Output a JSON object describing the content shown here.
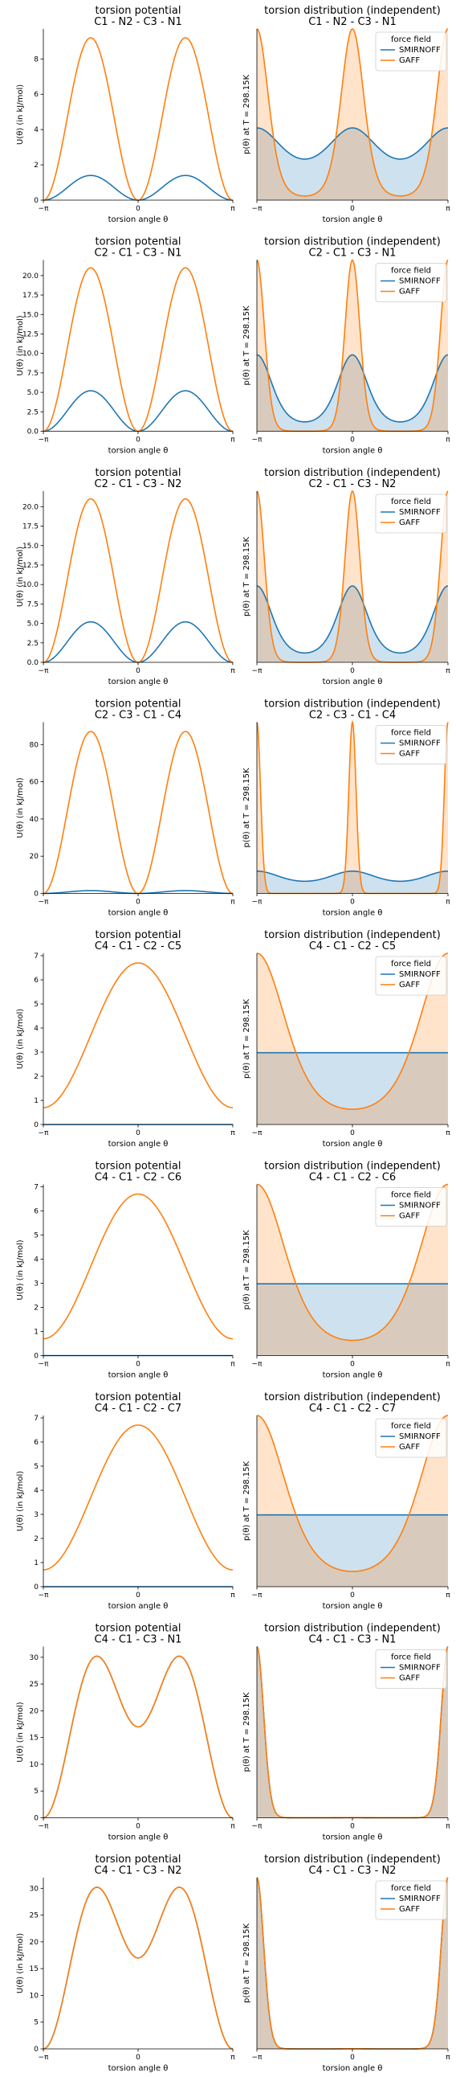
{
  "figure": {
    "series_colors": {
      "SMIRNOFF": "#1f77b4",
      "GAFF": "#ff7f0e"
    },
    "legend_title": "force field",
    "legend_entries": [
      "SMIRNOFF",
      "GAFF"
    ],
    "x_tick_labels": [
      "−π",
      "0",
      "π"
    ],
    "potential_xlabel": "torsion angle θ",
    "potential_ylabel": "U(θ) (in kJ/mol)",
    "distribution_xlabel": "torsion angle θ",
    "distribution_ylabel": "p(θ) at T = 298.15K",
    "potential_title": "torsion potential",
    "distribution_title": "torsion distribution (independent)"
  },
  "chart_data": [
    {
      "type": "line",
      "panel": "potential",
      "title": "torsion potential",
      "subtitle": "C1 - N2 - C3 - N1",
      "xlabel": "torsion angle θ",
      "ylabel": "U(θ) (in kJ/mol)",
      "xlim": [
        -3.1416,
        3.1416
      ],
      "ylim": [
        0,
        9.7
      ],
      "yticks": [
        0,
        2,
        4,
        6,
        8
      ],
      "series": [
        {
          "name": "SMIRNOFF",
          "model": "cos2",
          "amplitude": 1.4
        },
        {
          "name": "GAFF",
          "model": "cos2",
          "amplitude": 9.2
        }
      ]
    },
    {
      "type": "area",
      "panel": "distribution",
      "title": "torsion distribution (independent)",
      "subtitle": "C1 - N2 - C3 - N1",
      "xlabel": "torsion angle θ",
      "ylabel": "p(θ) at T = 298.15K",
      "legend": "top-right",
      "series": [
        {
          "name": "SMIRNOFF",
          "model": "cos2",
          "amplitude": 1.4
        },
        {
          "name": "GAFF",
          "model": "cos2",
          "amplitude": 9.2
        }
      ]
    },
    {
      "type": "line",
      "panel": "potential",
      "title": "torsion potential",
      "subtitle": "C2 - C1 - C3 - N1",
      "xlabel": "torsion angle θ",
      "ylabel": "U(θ) (in kJ/mol)",
      "xlim": [
        -3.1416,
        3.1416
      ],
      "ylim": [
        0,
        22
      ],
      "yticks": [
        0.0,
        2.5,
        5.0,
        7.5,
        10.0,
        12.5,
        15.0,
        17.5,
        20.0
      ],
      "series": [
        {
          "name": "SMIRNOFF",
          "model": "cos2",
          "amplitude": 5.2
        },
        {
          "name": "GAFF",
          "model": "cos2",
          "amplitude": 21.0
        }
      ]
    },
    {
      "type": "area",
      "panel": "distribution",
      "title": "torsion distribution (independent)",
      "subtitle": "C2 - C1 - C3 - N1",
      "xlabel": "torsion angle θ",
      "ylabel": "p(θ) at T = 298.15K",
      "legend": "top-right",
      "series": [
        {
          "name": "SMIRNOFF",
          "model": "cos2",
          "amplitude": 5.2
        },
        {
          "name": "GAFF",
          "model": "cos2",
          "amplitude": 21.0
        }
      ]
    },
    {
      "type": "line",
      "panel": "potential",
      "title": "torsion potential",
      "subtitle": "C2 - C1 - C3 - N2",
      "xlabel": "torsion angle θ",
      "ylabel": "U(θ) (in kJ/mol)",
      "xlim": [
        -3.1416,
        3.1416
      ],
      "ylim": [
        0,
        22
      ],
      "yticks": [
        0.0,
        2.5,
        5.0,
        7.5,
        10.0,
        12.5,
        15.0,
        17.5,
        20.0
      ],
      "series": [
        {
          "name": "SMIRNOFF",
          "model": "cos2",
          "amplitude": 5.2
        },
        {
          "name": "GAFF",
          "model": "cos2",
          "amplitude": 21.0
        }
      ]
    },
    {
      "type": "area",
      "panel": "distribution",
      "title": "torsion distribution (independent)",
      "subtitle": "C2 - C1 - C3 - N2",
      "xlabel": "torsion angle θ",
      "ylabel": "p(θ) at T = 298.15K",
      "legend": "top-right",
      "series": [
        {
          "name": "SMIRNOFF",
          "model": "cos2",
          "amplitude": 5.2
        },
        {
          "name": "GAFF",
          "model": "cos2",
          "amplitude": 21.0
        }
      ]
    },
    {
      "type": "line",
      "panel": "potential",
      "title": "torsion potential",
      "subtitle": "C2 - C3 - C1 - C4",
      "xlabel": "torsion angle θ",
      "ylabel": "U(θ) (in kJ/mol)",
      "xlim": [
        -3.1416,
        3.1416
      ],
      "ylim": [
        0,
        92
      ],
      "yticks": [
        0,
        20,
        40,
        60,
        80
      ],
      "series": [
        {
          "name": "SMIRNOFF",
          "model": "cos2",
          "amplitude": 1.5
        },
        {
          "name": "GAFF",
          "model": "cos2",
          "amplitude": 87.0
        }
      ]
    },
    {
      "type": "area",
      "panel": "distribution",
      "title": "torsion distribution (independent)",
      "subtitle": "C2 - C3 - C1 - C4",
      "xlabel": "torsion angle θ",
      "ylabel": "p(θ) at T = 298.15K",
      "legend": "top-right",
      "series": [
        {
          "name": "SMIRNOFF",
          "model": "cos2",
          "amplitude": 1.5
        },
        {
          "name": "GAFF",
          "model": "cos2",
          "amplitude": 87.0
        }
      ]
    },
    {
      "type": "line",
      "panel": "potential",
      "title": "torsion potential",
      "subtitle": "C4 - C1 - C2 - C5",
      "xlabel": "torsion angle θ",
      "ylabel": "U(θ) (in kJ/mol)",
      "xlim": [
        -3.1416,
        3.1416
      ],
      "ylim": [
        0,
        7.1
      ],
      "yticks": [
        0,
        1,
        2,
        3,
        4,
        5,
        6,
        7
      ],
      "series": [
        {
          "name": "SMIRNOFF",
          "model": "flat",
          "amplitude": 0
        },
        {
          "name": "GAFF",
          "model": "cos1",
          "amplitude": 6.7,
          "offset": 0.7
        }
      ]
    },
    {
      "type": "area",
      "panel": "distribution",
      "title": "torsion distribution (independent)",
      "subtitle": "C4 - C1 - C2 - C5",
      "xlabel": "torsion angle θ",
      "ylabel": "p(θ) at T = 298.15K",
      "legend": "top-right",
      "series": [
        {
          "name": "SMIRNOFF",
          "model": "flat",
          "amplitude": 0
        },
        {
          "name": "GAFF",
          "model": "cos1",
          "amplitude": 6.7,
          "offset": 0.7
        }
      ]
    },
    {
      "type": "line",
      "panel": "potential",
      "title": "torsion potential",
      "subtitle": "C4 - C1 - C2 - C6",
      "xlabel": "torsion angle θ",
      "ylabel": "U(θ) (in kJ/mol)",
      "xlim": [
        -3.1416,
        3.1416
      ],
      "ylim": [
        0,
        7.1
      ],
      "yticks": [
        0,
        1,
        2,
        3,
        4,
        5,
        6,
        7
      ],
      "series": [
        {
          "name": "SMIRNOFF",
          "model": "flat",
          "amplitude": 0
        },
        {
          "name": "GAFF",
          "model": "cos1",
          "amplitude": 6.7,
          "offset": 0.7
        }
      ]
    },
    {
      "type": "area",
      "panel": "distribution",
      "title": "torsion distribution (independent)",
      "subtitle": "C4 - C1 - C2 - C6",
      "xlabel": "torsion angle θ",
      "ylabel": "p(θ) at T = 298.15K",
      "legend": "top-right",
      "series": [
        {
          "name": "SMIRNOFF",
          "model": "flat",
          "amplitude": 0
        },
        {
          "name": "GAFF",
          "model": "cos1",
          "amplitude": 6.7,
          "offset": 0.7
        }
      ]
    },
    {
      "type": "line",
      "panel": "potential",
      "title": "torsion potential",
      "subtitle": "C4 - C1 - C2 - C7",
      "xlabel": "torsion angle θ",
      "ylabel": "U(θ) (in kJ/mol)",
      "xlim": [
        -3.1416,
        3.1416
      ],
      "ylim": [
        0,
        7.1
      ],
      "yticks": [
        0,
        1,
        2,
        3,
        4,
        5,
        6,
        7
      ],
      "series": [
        {
          "name": "SMIRNOFF",
          "model": "flat",
          "amplitude": 0
        },
        {
          "name": "GAFF",
          "model": "cos1",
          "amplitude": 6.7,
          "offset": 0.7
        }
      ]
    },
    {
      "type": "area",
      "panel": "distribution",
      "title": "torsion distribution (independent)",
      "subtitle": "C4 - C1 - C2 - C7",
      "xlabel": "torsion angle θ",
      "ylabel": "p(θ) at T = 298.15K",
      "legend": "top-right",
      "series": [
        {
          "name": "SMIRNOFF",
          "model": "flat",
          "amplitude": 0
        },
        {
          "name": "GAFF",
          "model": "cos1",
          "amplitude": 6.7,
          "offset": 0.7
        }
      ]
    },
    {
      "type": "line",
      "panel": "potential",
      "title": "torsion potential",
      "subtitle": "C4 - C1 - C3 - N1",
      "xlabel": "torsion angle θ",
      "ylabel": "U(θ) (in kJ/mol)",
      "xlim": [
        -3.1416,
        3.1416
      ],
      "ylim": [
        0,
        32
      ],
      "yticks": [
        0,
        5,
        10,
        15,
        20,
        25,
        30
      ],
      "series": [
        {
          "name": "SMIRNOFF",
          "model": "double",
          "peak": 30.2,
          "center": 17.0
        },
        {
          "name": "GAFF",
          "model": "double",
          "peak": 30.2,
          "center": 17.0
        }
      ]
    },
    {
      "type": "area",
      "panel": "distribution",
      "title": "torsion distribution (independent)",
      "subtitle": "C4 - C1 - C3 - N1",
      "xlabel": "torsion angle θ",
      "ylabel": "p(θ) at T = 298.15K",
      "legend": "top-right",
      "series": [
        {
          "name": "SMIRNOFF",
          "model": "double",
          "peak": 30.2,
          "center": 17.0
        },
        {
          "name": "GAFF",
          "model": "double",
          "peak": 30.2,
          "center": 17.0
        }
      ]
    },
    {
      "type": "line",
      "panel": "potential",
      "title": "torsion potential",
      "subtitle": "C4 - C1 - C3 - N2",
      "xlabel": "torsion angle θ",
      "ylabel": "U(θ) (in kJ/mol)",
      "xlim": [
        -3.1416,
        3.1416
      ],
      "ylim": [
        0,
        32
      ],
      "yticks": [
        0,
        5,
        10,
        15,
        20,
        25,
        30
      ],
      "series": [
        {
          "name": "SMIRNOFF",
          "model": "double",
          "peak": 30.2,
          "center": 17.0
        },
        {
          "name": "GAFF",
          "model": "double",
          "peak": 30.2,
          "center": 17.0
        }
      ]
    },
    {
      "type": "area",
      "panel": "distribution",
      "title": "torsion distribution (independent)",
      "subtitle": "C4 - C1 - C3 - N2",
      "xlabel": "torsion angle θ",
      "ylabel": "p(θ) at T = 298.15K",
      "legend": "top-right",
      "series": [
        {
          "name": "SMIRNOFF",
          "model": "double",
          "peak": 30.2,
          "center": 17.0
        },
        {
          "name": "GAFF",
          "model": "double",
          "peak": 30.2,
          "center": 17.0
        }
      ]
    }
  ]
}
